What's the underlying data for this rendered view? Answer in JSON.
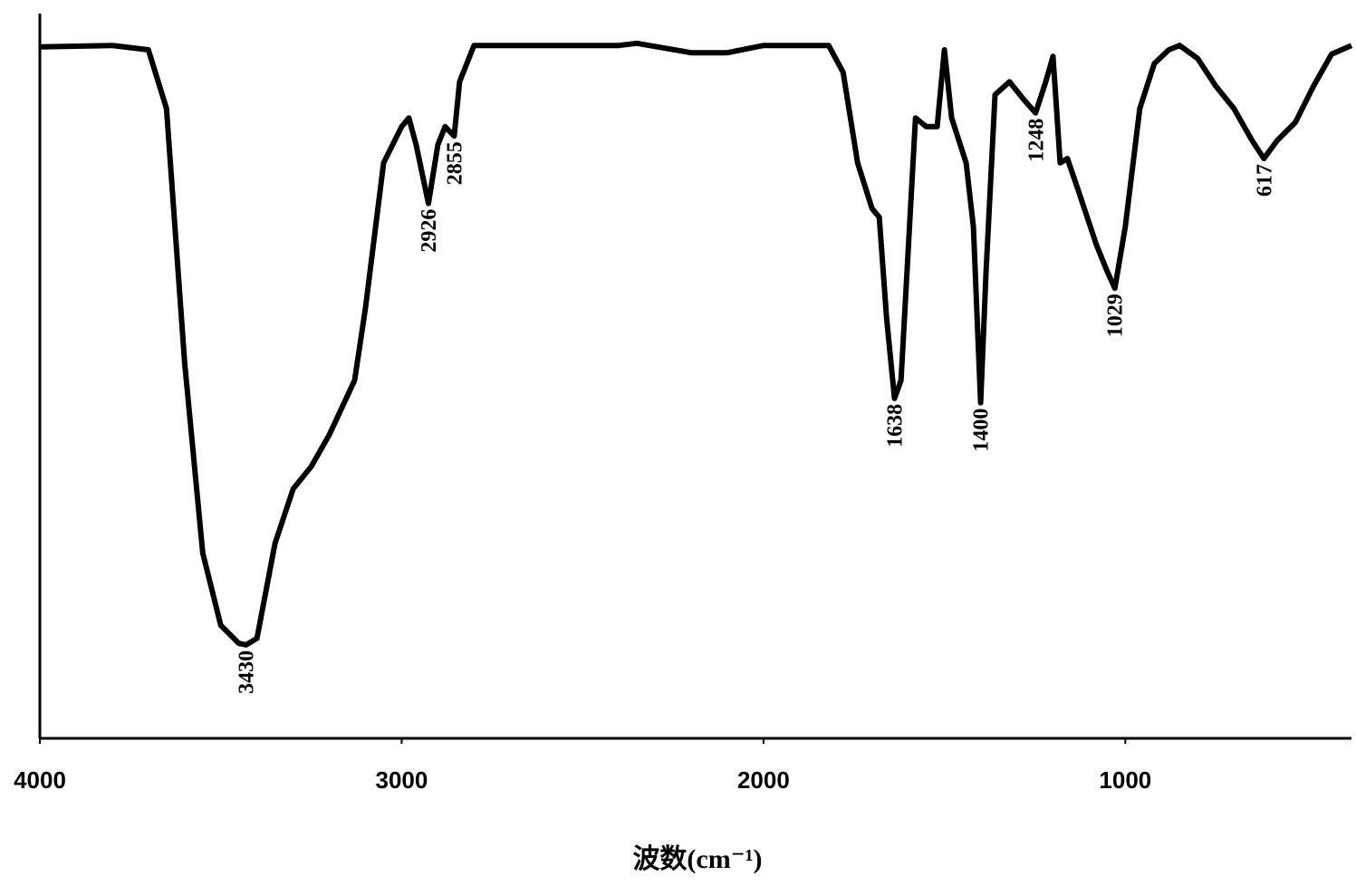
{
  "chart_data": {
    "type": "line",
    "x_label": "波数(cm⁻¹)",
    "xlim": [
      4000,
      375
    ],
    "ylim": [
      0,
      100
    ],
    "xticks": [
      4000,
      3000,
      2000,
      1000
    ],
    "series": [
      {
        "color": "#000000",
        "x": [
          4000,
          3800,
          3700,
          3650,
          3600,
          3550,
          3500,
          3450,
          3430,
          3400,
          3350,
          3300,
          3250,
          3200,
          3130,
          3100,
          3050,
          3000,
          2980,
          2960,
          2926,
          2900,
          2880,
          2855,
          2840,
          2800,
          2400,
          2350,
          2200,
          2100,
          2000,
          1820,
          1780,
          1740,
          1700,
          1680,
          1660,
          1638,
          1620,
          1580,
          1550,
          1520,
          1500,
          1480,
          1440,
          1420,
          1400,
          1385,
          1360,
          1320,
          1280,
          1248,
          1220,
          1200,
          1180,
          1160,
          1130,
          1080,
          1050,
          1029,
          1000,
          960,
          920,
          880,
          850,
          800,
          750,
          700,
          650,
          617,
          580,
          530,
          480,
          430,
          375
        ],
        "values": [
          95.4,
          95.6,
          95,
          86.9,
          51.9,
          25.6,
          15.6,
          13.1,
          12.9,
          13.8,
          26.9,
          34.4,
          37.5,
          41.9,
          49.4,
          59.4,
          79.4,
          84.4,
          85.6,
          81.9,
          73.8,
          81.9,
          84.4,
          83.1,
          90.6,
          95.6,
          95.6,
          95.9,
          94.6,
          94.6,
          95.6,
          95.6,
          91.9,
          79.4,
          73.1,
          71.9,
          58.1,
          46.9,
          49.4,
          85.6,
          84.4,
          84.4,
          95,
          85.6,
          79.4,
          70.6,
          46.3,
          64.4,
          88.8,
          90.6,
          88.1,
          86.3,
          90.6,
          94.1,
          79.4,
          80,
          75.6,
          68.1,
          64.4,
          62.1,
          70.6,
          86.9,
          93.1,
          95,
          95.6,
          93.8,
          90,
          86.9,
          82.5,
          80,
          82.5,
          85,
          90,
          94.4,
          95.6
        ]
      }
    ],
    "annotations": [
      {
        "text": "3430",
        "x": 3430,
        "y": 12.9
      },
      {
        "text": "2926",
        "x": 2926,
        "y": 73.8
      },
      {
        "text": "2855",
        "x": 2855,
        "y": 83.1
      },
      {
        "text": "1638",
        "x": 1638,
        "y": 46.9
      },
      {
        "text": "1400",
        "x": 1400,
        "y": 46.3
      },
      {
        "text": "1248",
        "x": 1248,
        "y": 86.3
      },
      {
        "text": "1029",
        "x": 1029,
        "y": 62.1
      },
      {
        "text": "617",
        "x": 617,
        "y": 80
      }
    ]
  }
}
